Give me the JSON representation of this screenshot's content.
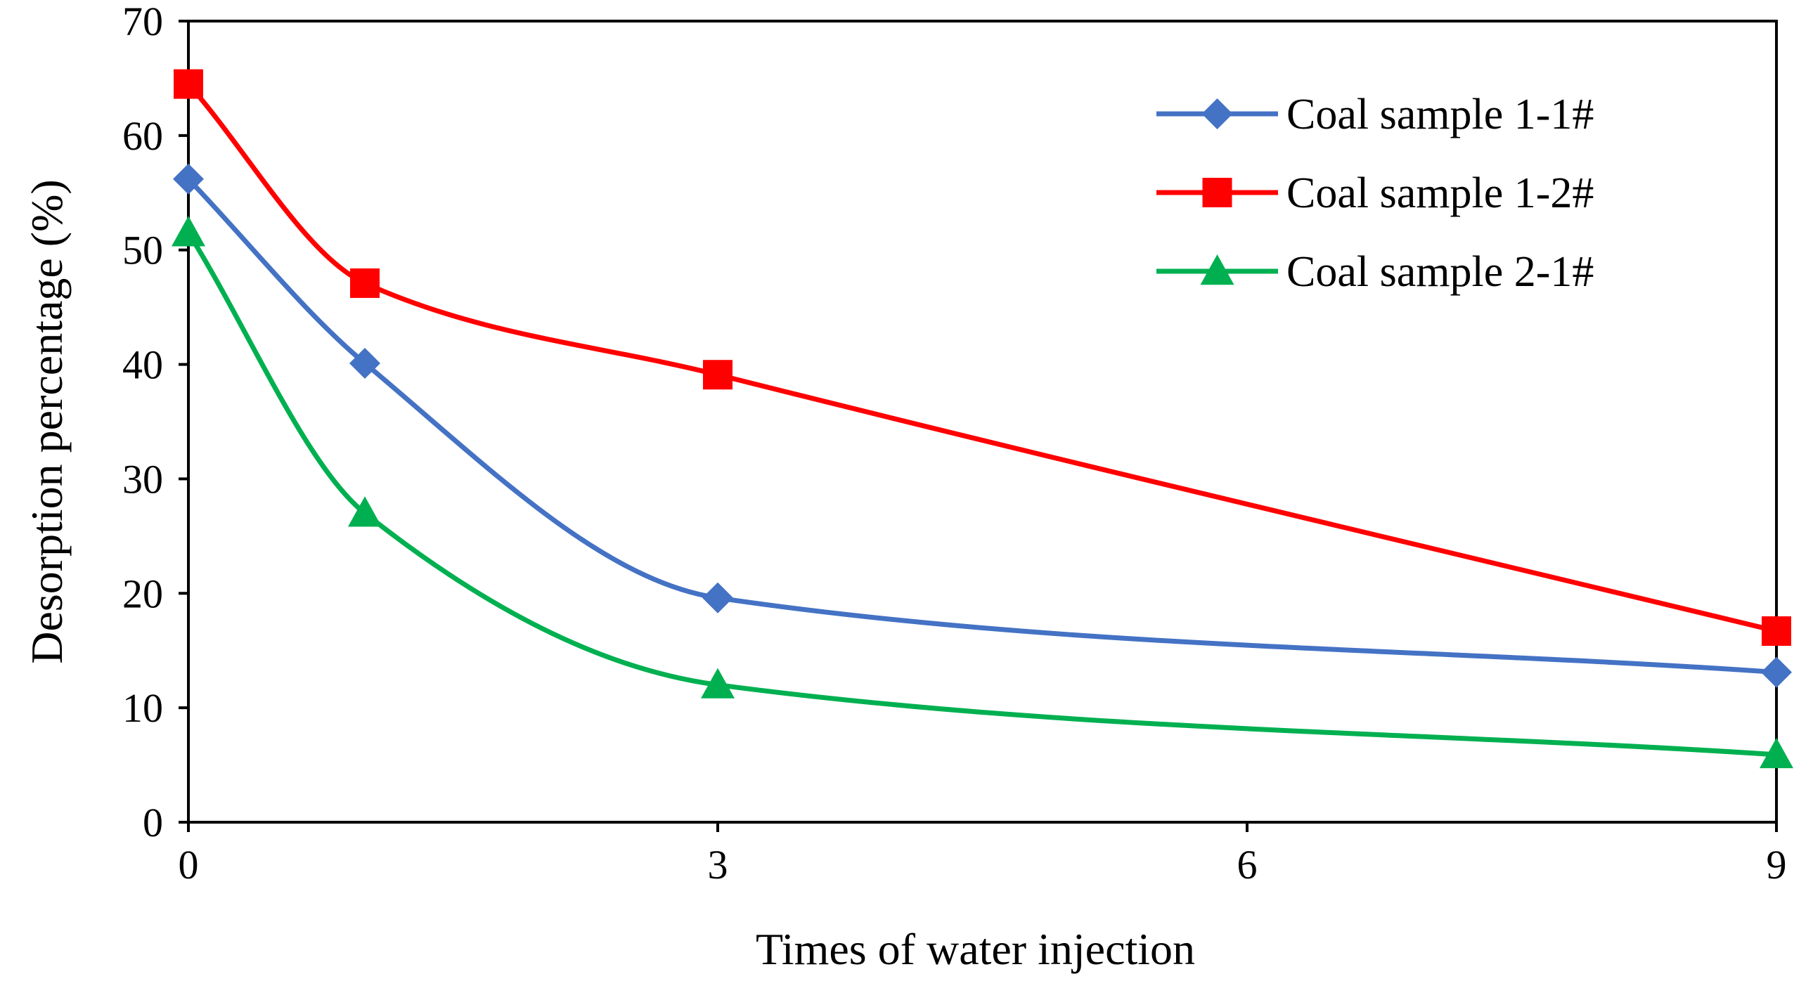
{
  "chart_data": {
    "type": "line",
    "title": "",
    "xlabel": "Times of water injection",
    "ylabel": "Desorption percentage (%)",
    "x": [
      0,
      1,
      3,
      9
    ],
    "xlim": [
      0,
      9
    ],
    "ylim": [
      0,
      70
    ],
    "xticks": [
      0,
      3,
      6,
      9
    ],
    "yticks": [
      0,
      10,
      20,
      30,
      40,
      50,
      60,
      70
    ],
    "grid": false,
    "legend_position": "top-right",
    "smoothed": true,
    "series": [
      {
        "name": "Coal sample 1-1#",
        "color": "#4472C4",
        "marker": "diamond",
        "values": [
          56.2,
          40.1,
          19.6,
          13.1
        ]
      },
      {
        "name": "Coal sample 1-2#",
        "color": "#FF0000",
        "marker": "square",
        "values": [
          64.5,
          47.1,
          39.1,
          16.7
        ]
      },
      {
        "name": "Coal sample 2-1#",
        "color": "#00B050",
        "marker": "triangle",
        "values": [
          51.5,
          27.0,
          12.0,
          5.9
        ]
      }
    ]
  }
}
